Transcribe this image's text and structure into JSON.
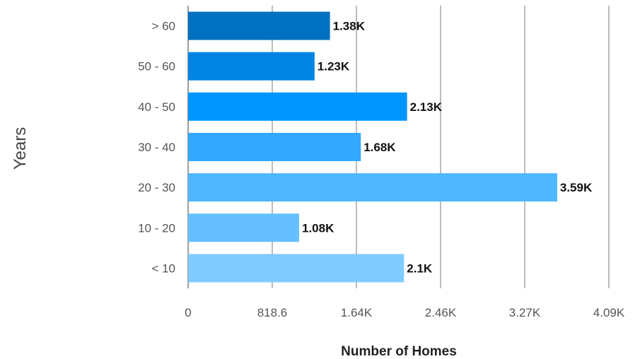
{
  "chart_data": {
    "type": "bar",
    "orientation": "horizontal",
    "categories": [
      "> 60",
      "50 - 60",
      "40 - 50",
      "30 - 40",
      "20 - 30",
      "10 - 20",
      "< 10"
    ],
    "values": [
      1380,
      1230,
      2130,
      1680,
      3590,
      1080,
      2100
    ],
    "data_labels": [
      "1.38K",
      "1.23K",
      "2.13K",
      "1.68K",
      "3.59K",
      "1.08K",
      "2.1K"
    ],
    "colors": [
      "#0070C0",
      "#0084E3",
      "#0096FF",
      "#33A8FF",
      "#4FB6FF",
      "#66C0FF",
      "#80CBFF"
    ],
    "xlabel": "Number of Homes",
    "ylabel": "Years",
    "xlim": [
      0,
      4093
    ],
    "x_ticks": [
      0,
      818.6,
      1637.2,
      2455.8,
      3274.4,
      4093
    ],
    "x_tick_labels": [
      "0",
      "818.6",
      "1.64K",
      "2.46K",
      "3.27K",
      "4.09K"
    ],
    "grid": "vertical",
    "legend": "none"
  }
}
